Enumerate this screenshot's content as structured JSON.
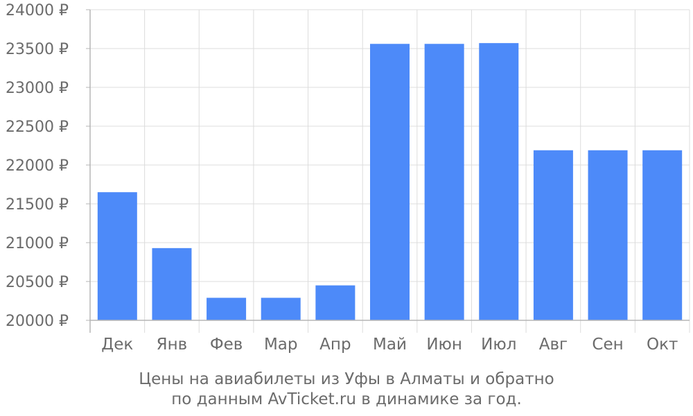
{
  "chart_data": {
    "type": "bar",
    "categories": [
      "Дек",
      "Янв",
      "Фев",
      "Мар",
      "Апр",
      "Май",
      "Июн",
      "Июл",
      "Авг",
      "Сен",
      "Окт"
    ],
    "values": [
      21650,
      20930,
      20290,
      20290,
      20450,
      23560,
      23560,
      23570,
      22190,
      22190,
      22190
    ],
    "y_ticks": [
      "20000 ₽",
      "20500 ₽",
      "21000 ₽",
      "21500 ₽",
      "22000 ₽",
      "22500 ₽",
      "23000 ₽",
      "23500 ₽",
      "24000 ₽"
    ],
    "ylim": [
      20000,
      24000
    ],
    "grid": true,
    "bar_color": "#4d8af9",
    "caption_line1": "Цены на авиабилеты из Уфы в Алматы и обратно",
    "caption_line2": "по данным AvTicket.ru в динамике за год."
  }
}
